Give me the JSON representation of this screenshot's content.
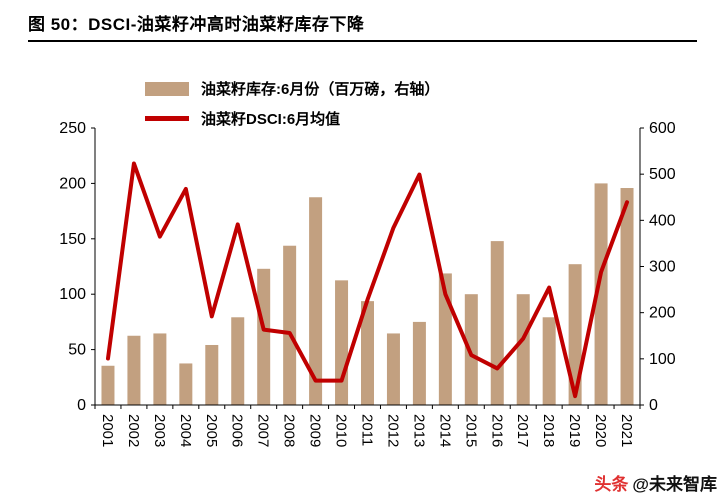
{
  "header": {
    "title": "图 50：DSCI-油菜籽冲高时油菜籽库存下降"
  },
  "watermark": {
    "brand": "头条",
    "handle": "@未来智库"
  },
  "colors": {
    "bar": "#C2A080",
    "line": "#C00000",
    "axis": "#000000",
    "background": "#FFFFFF"
  },
  "chart_data": {
    "type": "bar+line combo",
    "title": "图 50：DSCI-油菜籽冲高时油菜籽库存下降",
    "grid": false,
    "legend_position": "top",
    "categories": [
      "2001",
      "2002",
      "2003",
      "2004",
      "2005",
      "2006",
      "2007",
      "2008",
      "2009",
      "2010",
      "2011",
      "2012",
      "2013",
      "2014",
      "2015",
      "2016",
      "2017",
      "2018",
      "2019",
      "2020",
      "2021"
    ],
    "series": [
      {
        "name": "油菜籽库存:6月份（百万磅，右轴）",
        "type": "bar",
        "axis": "right",
        "color": "#C2A080",
        "values": [
          85,
          150,
          155,
          90,
          130,
          190,
          295,
          345,
          450,
          270,
          225,
          155,
          180,
          285,
          240,
          355,
          240,
          190,
          305,
          480,
          470
        ]
      },
      {
        "name": "油菜籽DSCI:6月均值",
        "type": "line",
        "axis": "left",
        "color": "#C00000",
        "values": [
          42,
          218,
          152,
          195,
          80,
          163,
          68,
          65,
          22,
          22,
          95,
          160,
          208,
          100,
          45,
          33,
          60,
          106,
          8,
          120,
          183
        ]
      }
    ],
    "left_axis": {
      "min": 0,
      "max": 250,
      "step": 50,
      "ticks": [
        0,
        50,
        100,
        150,
        200,
        250
      ]
    },
    "right_axis": {
      "min": 0,
      "max": 600,
      "step": 100,
      "ticks": [
        0,
        100,
        200,
        300,
        400,
        500,
        600
      ]
    }
  }
}
